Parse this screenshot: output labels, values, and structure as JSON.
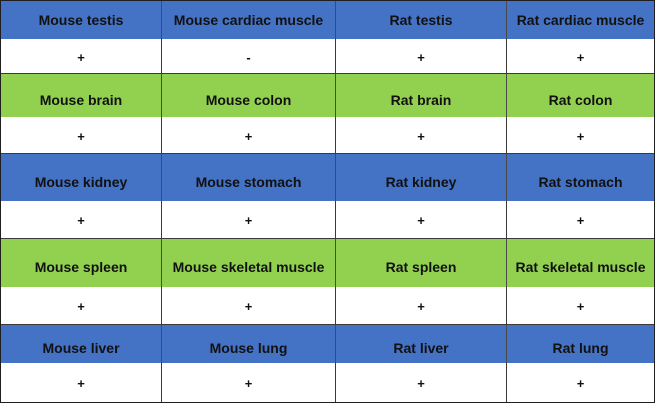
{
  "colors": {
    "blue_row": "#4472c4",
    "green_row": "#92d050",
    "value_row": "#ffffff"
  },
  "rows": [
    {
      "color": "blue",
      "labels": [
        "Mouse testis",
        "Mouse cardiac muscle",
        "Rat testis",
        "Rat cardiac muscle"
      ],
      "values": [
        "+",
        "-",
        "+",
        "+"
      ]
    },
    {
      "color": "green",
      "labels": [
        "Mouse brain",
        "Mouse colon",
        "Rat brain",
        "Rat colon"
      ],
      "values": [
        "+",
        "+",
        "+",
        "+"
      ]
    },
    {
      "color": "blue",
      "labels": [
        "Mouse kidney",
        "Mouse stomach",
        "Rat kidney",
        "Rat stomach"
      ],
      "values": [
        "+",
        "+",
        "+",
        "+"
      ]
    },
    {
      "color": "green",
      "labels": [
        "Mouse spleen",
        "Mouse skeletal muscle",
        "Rat spleen",
        "Rat skeletal muscle"
      ],
      "values": [
        "+",
        "+",
        "+",
        "+"
      ]
    },
    {
      "color": "blue",
      "labels": [
        "Mouse liver",
        "Mouse lung",
        "Rat liver",
        "Rat lung"
      ],
      "values": [
        "+",
        "+",
        "+",
        "+"
      ]
    }
  ]
}
